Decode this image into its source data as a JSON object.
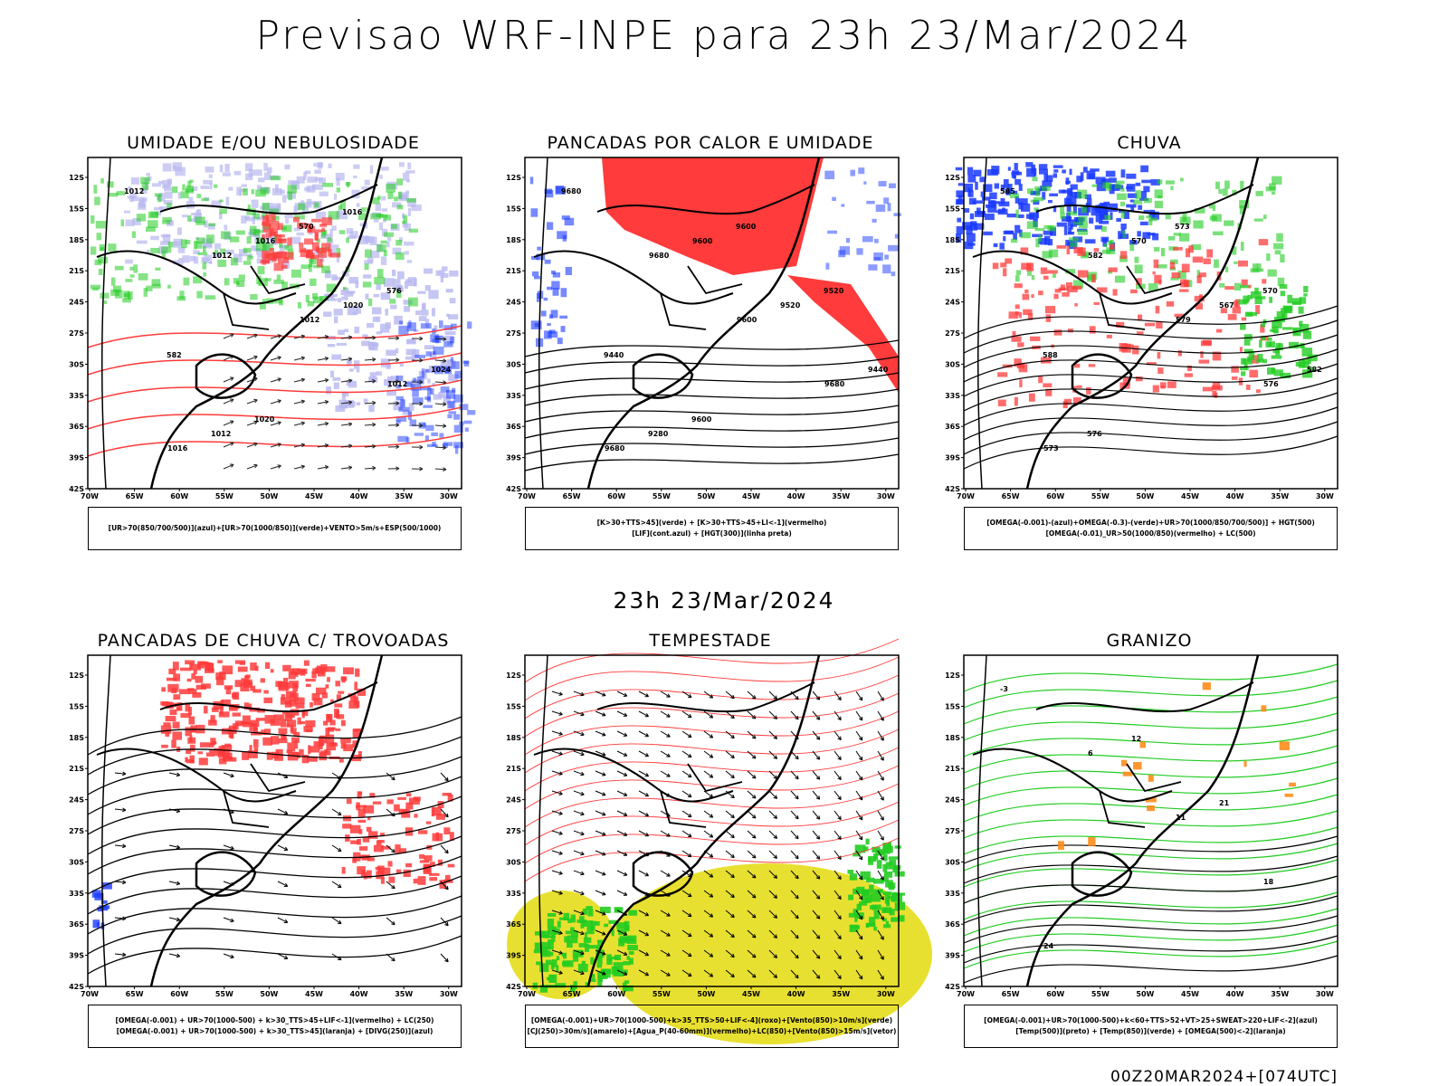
{
  "title": "Previsao WRF-INPE  para 23h 23/Mar/2024",
  "mid_date": "23h 23/Mar/2024",
  "footer": "00Z20MAR2024+[074UTC]",
  "axes": {
    "lat_ticks": [
      "12S",
      "15S",
      "18S",
      "21S",
      "24S",
      "27S",
      "30S",
      "33S",
      "36S",
      "39S",
      "42S"
    ],
    "lon_ticks": [
      "70W",
      "65W",
      "60W",
      "55W",
      "50W",
      "45W",
      "40W",
      "35W",
      "30W"
    ]
  },
  "colors": {
    "red": "#ff3b3b",
    "green": "#22cc22",
    "blue": "#1a3aff",
    "lightblue": "#b8b8f0",
    "yellow": "#e8e030",
    "orange": "#ff8c1a"
  },
  "panels": [
    {
      "title": "UMIDADE E/OU NEBULOSIDADE",
      "legend": [
        "[UR>70(850/700/500)](azul)+[UR>70(1000/850)](verde)+VENTO>5m/s+ESP(500/1000)"
      ],
      "labels": [
        "1012",
        "1012",
        "1012",
        "1012",
        "1016",
        "1016",
        "1020",
        "1024",
        "1012",
        "570",
        "576",
        "582",
        "1020",
        "1016"
      ]
    },
    {
      "title": "PANCADAS POR CALOR E UMIDADE",
      "legend": [
        "[K>30+TTS>45](verde) + [K>30+TTS>45+LI<-1](vermelho)",
        "[LIF](cont.azul) + [HGT(300)](linha preta)"
      ],
      "labels": [
        "9680",
        "9680",
        "9600",
        "9680",
        "9680",
        "9600",
        "9520",
        "9440",
        "9280",
        "9600",
        "9520",
        "9440",
        "9600"
      ]
    },
    {
      "title": "CHUVA",
      "legend": [
        "[OMEGA(-0.001)-(azul)+OMEGA(-0.3)-(verde)+UR>70(1000/850/700/500)] + HGT(500)",
        "[OMEGA(-0.01)_UR>50(1000/850)(vermelho) + LC(500)"
      ],
      "labels": [
        "585",
        "582",
        "579",
        "576",
        "573",
        "570",
        "567",
        "582",
        "576",
        "573",
        "570",
        "588"
      ]
    },
    {
      "title": "PANCADAS DE CHUVA C/ TROVOADAS",
      "legend": [
        "[OMEGA(-0.001) + UR>70(1000-500) + k>30_TTS>45+LIF<-1](vermelho) + LC(250)",
        "[OMEGA(-0.001) + UR>70(1000-500) + k>30_TTS>45](laranja) + [DIVG(250)](azul)"
      ],
      "labels": []
    },
    {
      "title": "TEMPESTADE",
      "legend": [
        "[OMEGA(-0.001)+UR>70(1000-500)+k>35_TTS>50+LIF<-4](roxo)+[Vento(850)>10m/s](verde)",
        "[CJ(250)>30m/s](amarelo)+[Agua_P(40-60mm)](vermelho)+LC(850)+[Vento(850)>15m/s](vetor)"
      ],
      "labels": []
    },
    {
      "title": "GRANIZO",
      "legend": [
        "[OMEGA(-0.001)+UR>70(1000-500)+k<60+TTS>52+VT>25+SWEAT>220+LIF<-2](azul)",
        "[Temp(500)](preto) + [Temp(850)](verde) + [OMEGA(500)<-2](laranja)"
      ],
      "labels": [
        "-3",
        "6",
        "11",
        "18",
        "24",
        "12",
        "21"
      ]
    }
  ]
}
